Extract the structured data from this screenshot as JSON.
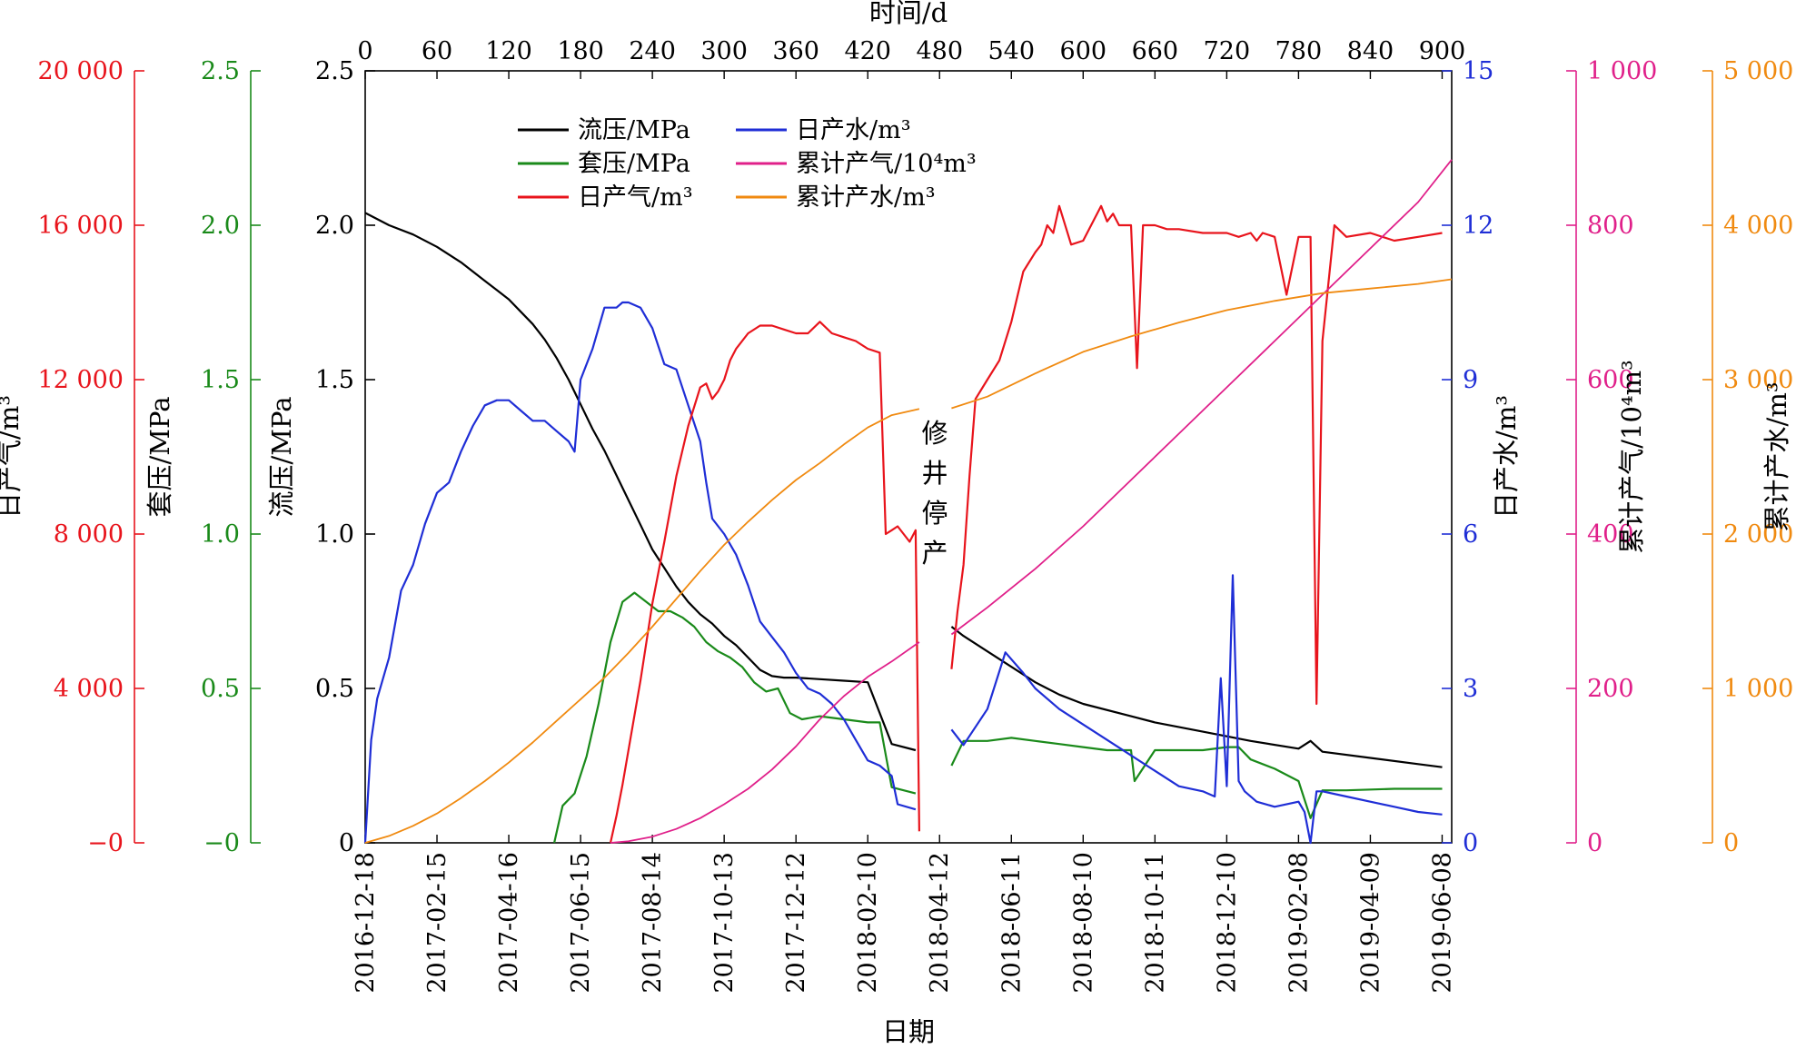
{
  "chart_data": {
    "type": "line",
    "title": "",
    "xlabel_bottom": "日期",
    "xlabel_top": "时间/d",
    "x_top": {
      "range": [
        0,
        908
      ],
      "ticks": [
        "0",
        "60",
        "120",
        "180",
        "240",
        "300",
        "360",
        "420",
        "480",
        "540",
        "600",
        "660",
        "720",
        "780",
        "840",
        "900"
      ]
    },
    "x_dates": [
      "2016-12-18",
      "2017-02-15",
      "2017-04-16",
      "2017-06-15",
      "2017-08-14",
      "2017-10-13",
      "2017-12-12",
      "2018-02-10",
      "2018-04-12",
      "2018-06-11",
      "2018-08-10",
      "2018-10-11",
      "2018-12-10",
      "2019-02-08",
      "2019-04-09",
      "2019-06-08"
    ],
    "axes": {
      "gas_daily": {
        "label": "日产气/m³",
        "color": "#e8141c",
        "range": [
          0,
          20000
        ],
        "ticks": [
          "−0",
          "4 000",
          "8 000",
          "12 000",
          "16 000",
          "20 000"
        ]
      },
      "casing_pressure": {
        "label": "套压/MPa",
        "color": "#1a8a1a",
        "range": [
          0,
          2.5
        ],
        "ticks": [
          "−0",
          "0.5",
          "1.0",
          "1.5",
          "2.0",
          "2.5"
        ]
      },
      "flow_pressure": {
        "label": "流压/MPa",
        "color": "#000000",
        "range": [
          0,
          2.5
        ],
        "ticks": [
          "0",
          "0.5",
          "1.0",
          "1.5",
          "2.0",
          "2.5"
        ]
      },
      "water_daily": {
        "label": "日产水/m³",
        "color": "#1f2ed6",
        "range": [
          0,
          15
        ],
        "ticks": [
          "0",
          "3",
          "6",
          "9",
          "12",
          "15"
        ]
      },
      "gas_cumulative": {
        "label": "累计产气/10⁴m³",
        "color": "#e0208a",
        "range": [
          0,
          1000
        ],
        "ticks": [
          "0",
          "200",
          "400",
          "600",
          "800",
          "1 000"
        ]
      },
      "water_cumulative": {
        "label": "累计产水/m³",
        "color": "#f08a10",
        "range": [
          0,
          5000
        ],
        "ticks": [
          "0",
          "1 000",
          "2 000",
          "3 000",
          "4 000",
          "5 000"
        ]
      }
    },
    "legend": {
      "placement": "top-left inside"
    },
    "annotation": {
      "text": "修井停产",
      "x": 476
    },
    "series": [
      {
        "name": "流压/MPa",
        "axis": "flow_pressure",
        "color": "#000000",
        "x": [
          0,
          20,
          40,
          60,
          80,
          100,
          110,
          120,
          130,
          140,
          150,
          160,
          170,
          180,
          190,
          200,
          210,
          220,
          230,
          240,
          250,
          260,
          270,
          280,
          290,
          300,
          310,
          320,
          330,
          340,
          350,
          360,
          380,
          400,
          420,
          440,
          460,
          null,
          490,
          500,
          520,
          540,
          560,
          580,
          600,
          640,
          660,
          700,
          740,
          780,
          790,
          800,
          840,
          880,
          900
        ],
        "y": [
          2.04,
          2.0,
          1.97,
          1.93,
          1.88,
          1.82,
          1.79,
          1.76,
          1.72,
          1.68,
          1.63,
          1.57,
          1.5,
          1.42,
          1.34,
          1.27,
          1.19,
          1.11,
          1.03,
          0.95,
          0.89,
          0.83,
          0.78,
          0.74,
          0.71,
          0.67,
          0.64,
          0.6,
          0.56,
          0.54,
          0.535,
          0.535,
          0.53,
          0.525,
          0.52,
          0.32,
          0.3,
          null,
          0.7,
          0.67,
          0.62,
          0.57,
          0.52,
          0.48,
          0.45,
          0.41,
          0.39,
          0.36,
          0.33,
          0.305,
          0.33,
          0.295,
          0.275,
          0.255,
          0.245
        ]
      },
      {
        "name": "套压/MPa",
        "axis": "casing_pressure",
        "color": "#1a8a1a",
        "x": [
          158,
          165,
          175,
          185,
          195,
          205,
          215,
          225,
          235,
          245,
          255,
          265,
          275,
          285,
          295,
          305,
          315,
          325,
          335,
          345,
          355,
          365,
          380,
          400,
          420,
          430,
          440,
          460,
          null,
          490,
          500,
          520,
          540,
          560,
          580,
          600,
          620,
          640,
          643,
          660,
          680,
          700,
          720,
          730,
          740,
          760,
          780,
          790,
          800,
          820,
          860,
          900
        ],
        "y": [
          0,
          0.12,
          0.16,
          0.28,
          0.45,
          0.65,
          0.78,
          0.81,
          0.78,
          0.75,
          0.75,
          0.73,
          0.7,
          0.65,
          0.62,
          0.6,
          0.57,
          0.52,
          0.49,
          0.5,
          0.42,
          0.4,
          0.41,
          0.4,
          0.39,
          0.39,
          0.18,
          0.16,
          null,
          0.25,
          0.33,
          0.33,
          0.34,
          0.33,
          0.32,
          0.31,
          0.3,
          0.3,
          0.2,
          0.3,
          0.3,
          0.3,
          0.31,
          0.31,
          0.27,
          0.24,
          0.2,
          0.08,
          0.17,
          0.17,
          0.175,
          0.175
        ]
      },
      {
        "name": "日产水/m³",
        "axis": "water_daily",
        "color": "#1f2ed6",
        "x": [
          0,
          5,
          10,
          20,
          30,
          40,
          50,
          60,
          70,
          80,
          90,
          100,
          110,
          120,
          130,
          140,
          150,
          160,
          170,
          175,
          180,
          190,
          200,
          210,
          215,
          220,
          230,
          240,
          250,
          260,
          270,
          280,
          285,
          290,
          300,
          305,
          310,
          320,
          330,
          340,
          350,
          360,
          370,
          380,
          390,
          400,
          410,
          420,
          430,
          440,
          445,
          460,
          null,
          490,
          500,
          520,
          535,
          550,
          560,
          580,
          600,
          620,
          640,
          660,
          680,
          700,
          710,
          715,
          720,
          725,
          730,
          735,
          745,
          760,
          780,
          785,
          790,
          795,
          800,
          820,
          840,
          860,
          880,
          900
        ],
        "y": [
          0,
          2.0,
          2.8,
          3.6,
          4.9,
          5.4,
          6.2,
          6.8,
          7.0,
          7.6,
          8.1,
          8.5,
          8.6,
          8.6,
          8.4,
          8.2,
          8.2,
          8.0,
          7.8,
          7.6,
          9.0,
          9.6,
          10.4,
          10.4,
          10.5,
          10.5,
          10.4,
          10.0,
          9.3,
          9.2,
          8.5,
          7.8,
          7.0,
          6.3,
          6.0,
          5.8,
          5.6,
          5.0,
          4.3,
          4.0,
          3.7,
          3.3,
          3.0,
          2.9,
          2.7,
          2.4,
          2.0,
          1.6,
          1.5,
          1.3,
          0.75,
          0.65,
          null,
          2.2,
          1.9,
          2.6,
          3.7,
          3.3,
          3.0,
          2.6,
          2.3,
          2.0,
          1.7,
          1.4,
          1.1,
          1.0,
          0.9,
          3.2,
          1.1,
          5.2,
          1.2,
          1.0,
          0.8,
          0.7,
          0.8,
          0.6,
          0.0,
          1.0,
          1.0,
          0.9,
          0.8,
          0.7,
          0.6,
          0.55
        ]
      },
      {
        "name": "日产气/m³",
        "axis": "gas_daily",
        "color": "#e8141c",
        "x": [
          205,
          210,
          215,
          220,
          230,
          240,
          250,
          260,
          270,
          280,
          285,
          290,
          295,
          300,
          305,
          310,
          320,
          330,
          340,
          350,
          360,
          370,
          380,
          390,
          400,
          410,
          420,
          430,
          435,
          440,
          445,
          450,
          455,
          460,
          463,
          null,
          490,
          495,
          500,
          505,
          510,
          520,
          530,
          540,
          550,
          560,
          565,
          570,
          575,
          580,
          590,
          600,
          610,
          615,
          620,
          625,
          630,
          640,
          645,
          650,
          660,
          670,
          680,
          700,
          720,
          730,
          740,
          745,
          750,
          760,
          770,
          780,
          785,
          790,
          795,
          800,
          810,
          820,
          840,
          860,
          880,
          900
        ],
        "y": [
          0,
          700,
          1500,
          2400,
          4200,
          6200,
          7800,
          9500,
          10800,
          11800,
          11900,
          11500,
          11700,
          12000,
          12500,
          12800,
          13200,
          13400,
          13400,
          13300,
          13200,
          13200,
          13500,
          13200,
          13100,
          13000,
          12800,
          12700,
          8000,
          8100,
          8200,
          8000,
          7800,
          8100,
          300,
          null,
          4500,
          6000,
          7200,
          9500,
          11500,
          12000,
          12500,
          13500,
          14800,
          15300,
          15500,
          16000,
          15800,
          16500,
          15500,
          15600,
          16200,
          16500,
          16100,
          16300,
          16000,
          16000,
          12300,
          16000,
          16000,
          15900,
          15900,
          15800,
          15800,
          15700,
          15800,
          15600,
          15800,
          15700,
          14200,
          15700,
          15700,
          15700,
          3600,
          13000,
          16000,
          15700,
          15800,
          15600,
          15700,
          15800
        ]
      },
      {
        "name": "累计产气/10⁴m³",
        "axis": "gas_cumulative",
        "color": "#e0208a",
        "x": [
          205,
          220,
          240,
          260,
          280,
          300,
          320,
          340,
          360,
          380,
          400,
          420,
          440,
          463,
          null,
          490,
          520,
          560,
          600,
          640,
          680,
          720,
          760,
          800,
          840,
          880,
          908
        ],
        "y": [
          0,
          2,
          8,
          18,
          32,
          50,
          70,
          95,
          125,
          160,
          190,
          215,
          235,
          260,
          null,
          270,
          305,
          355,
          410,
          470,
          530,
          590,
          650,
          710,
          770,
          830,
          885
        ]
      },
      {
        "name": "累计产水/m³",
        "axis": "water_cumulative",
        "color": "#f08a10",
        "x": [
          0,
          20,
          40,
          60,
          80,
          100,
          120,
          140,
          160,
          180,
          200,
          220,
          240,
          260,
          280,
          300,
          320,
          340,
          360,
          380,
          400,
          420,
          440,
          463,
          null,
          490,
          520,
          560,
          600,
          640,
          680,
          720,
          760,
          800,
          840,
          880,
          908
        ],
        "y": [
          0,
          45,
          110,
          190,
          290,
          400,
          520,
          650,
          790,
          930,
          1070,
          1230,
          1400,
          1580,
          1760,
          1930,
          2080,
          2220,
          2350,
          2460,
          2580,
          2690,
          2770,
          2810,
          null,
          2815,
          2890,
          3040,
          3180,
          3280,
          3370,
          3450,
          3510,
          3560,
          3590,
          3620,
          3650
        ]
      }
    ]
  }
}
